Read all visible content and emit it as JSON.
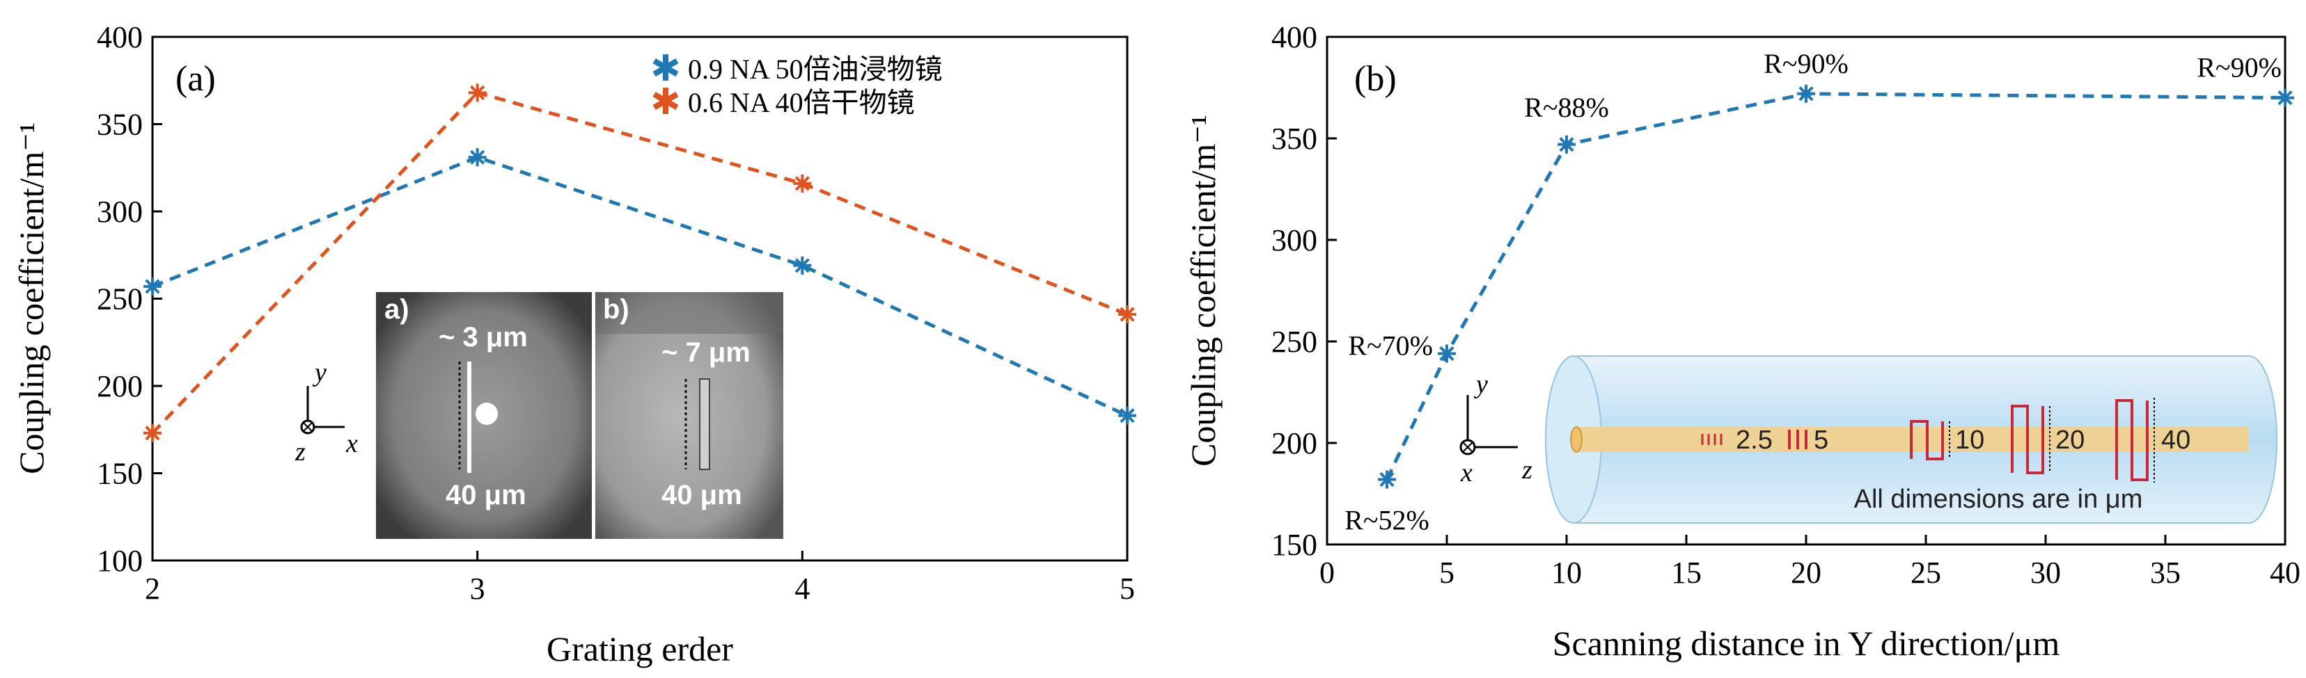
{
  "chart_data": [
    {
      "type": "line",
      "panel_label": "(a)",
      "xlabel": "Grating erder",
      "ylabel": "Coupling coefficient/m⁻¹",
      "xlim": [
        2,
        5
      ],
      "ylim": [
        100,
        400
      ],
      "xticks": [
        "2",
        "3",
        "4",
        "5"
      ],
      "yticks": [
        "100",
        "150",
        "200",
        "250",
        "300",
        "350",
        "400"
      ],
      "x": [
        2,
        3,
        4,
        5
      ],
      "series": [
        {
          "name": "0.9 NA 50倍油浸物镜",
          "color": "#1f77b4",
          "values": [
            257,
            331,
            269,
            183
          ]
        },
        {
          "name": "0.6 NA 40倍干物镜",
          "color": "#e0531f",
          "values": [
            173,
            368,
            316,
            241
          ]
        }
      ],
      "legend_position": "top-right",
      "grid": false,
      "inset": {
        "panels": [
          {
            "label": "a)",
            "width_label": "~ 3 μm",
            "length_label": "40 μm"
          },
          {
            "label": "b)",
            "width_label": "~ 7 μm",
            "length_label": "40 μm"
          }
        ],
        "axes": [
          "y",
          "z",
          "x"
        ]
      }
    },
    {
      "type": "line",
      "panel_label": "(b)",
      "xlabel": "Scanning distance in Y direction/μm",
      "ylabel": "Coupling coefficient/m⁻¹",
      "xlim": [
        0,
        40
      ],
      "ylim": [
        150,
        400
      ],
      "xticks": [
        "0",
        "5",
        "10",
        "15",
        "20",
        "25",
        "30",
        "35",
        "40"
      ],
      "yticks": [
        "150",
        "200",
        "250",
        "300",
        "350",
        "400"
      ],
      "series": [
        {
          "color": "#1f77b4",
          "x": [
            2.5,
            5,
            10,
            20,
            40
          ],
          "values": [
            182,
            244,
            347,
            372,
            370
          ],
          "annotations": [
            "R~52%",
            "R~70%",
            "R~88%",
            "R~90%",
            "R~90%"
          ]
        }
      ],
      "grid": false,
      "inset": {
        "scan_labels": [
          "2.5",
          "5",
          "10",
          "20",
          "40"
        ],
        "caption": "All dimensions are in μm",
        "axes": [
          "y",
          "x",
          "z"
        ]
      }
    }
  ]
}
